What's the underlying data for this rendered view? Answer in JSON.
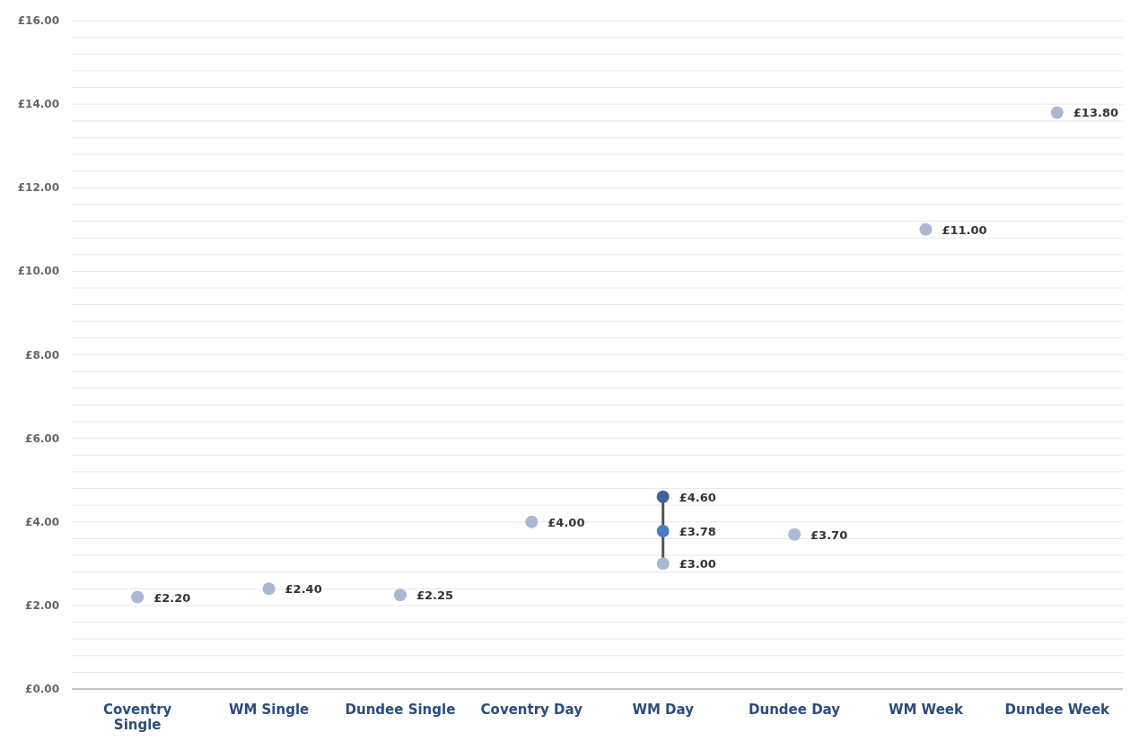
{
  "chart_data": {
    "type": "scatter",
    "categories": [
      "Coventry Single",
      "WM Single",
      "Dundee Single",
      "Coventry Day",
      "WM Day",
      "Dundee Day",
      "WM Week",
      "Dundee Week"
    ],
    "series": [
      {
        "type": "line",
        "color": "#555555",
        "x": [
          "WM Day",
          "WM Day"
        ],
        "values": [
          3.0,
          4.6
        ],
        "marker": "none"
      },
      {
        "color": "#a9b8d6",
        "values": [
          2.2,
          2.4,
          2.25,
          4.0,
          3.0,
          3.7,
          11.0,
          13.8
        ],
        "value_labels": [
          "£2.20",
          "£2.40",
          "£2.25",
          "£4.00",
          "£3.00",
          "£3.70",
          "£11.00",
          "£13.80"
        ]
      },
      {
        "color": "#4a7cc0",
        "values": [
          null,
          null,
          null,
          null,
          3.78,
          null,
          null,
          null
        ],
        "value_labels": [
          null,
          null,
          null,
          null,
          "£3.78",
          null,
          null,
          null
        ]
      },
      {
        "color": "#3a6399",
        "values": [
          null,
          null,
          null,
          null,
          4.6,
          null,
          null,
          null
        ],
        "value_labels": [
          null,
          null,
          null,
          null,
          "£4.60",
          null,
          null,
          null
        ]
      }
    ],
    "ylim": [
      0,
      16
    ],
    "yticks": [
      {
        "value": 0,
        "label": "£0.00"
      },
      {
        "value": 0.4,
        "label": null
      },
      {
        "value": 0.8,
        "label": null
      },
      {
        "value": 1.2,
        "label": null
      },
      {
        "value": 1.6,
        "label": null
      },
      {
        "value": 2,
        "label": "£2.00"
      },
      {
        "value": 2.4,
        "label": null
      },
      {
        "value": 2.8,
        "label": null
      },
      {
        "value": 3.2,
        "label": null
      },
      {
        "value": 3.6,
        "label": null
      },
      {
        "value": 4,
        "label": "£4.00"
      },
      {
        "value": 4.4,
        "label": null
      },
      {
        "value": 4.8,
        "label": null
      },
      {
        "value": 5.2,
        "label": null
      },
      {
        "value": 5.6,
        "label": null
      },
      {
        "value": 6,
        "label": "£6.00"
      },
      {
        "value": 6.4,
        "label": null
      },
      {
        "value": 6.8,
        "label": null
      },
      {
        "value": 7.2,
        "label": null
      },
      {
        "value": 7.6,
        "label": null
      },
      {
        "value": 8,
        "label": "£8.00"
      },
      {
        "value": 8.4,
        "label": null
      },
      {
        "value": 8.8,
        "label": null
      },
      {
        "value": 9.2,
        "label": null
      },
      {
        "value": 9.6,
        "label": null
      },
      {
        "value": 10,
        "label": "£10.00"
      },
      {
        "value": 10.4,
        "label": null
      },
      {
        "value": 10.8,
        "label": null
      },
      {
        "value": 11.2,
        "label": null
      },
      {
        "value": 11.6,
        "label": null
      },
      {
        "value": 12,
        "label": "£12.00"
      },
      {
        "value": 12.4,
        "label": null
      },
      {
        "value": 12.8,
        "label": null
      },
      {
        "value": 13.2,
        "label": null
      },
      {
        "value": 13.6,
        "label": null
      },
      {
        "value": 14,
        "label": "£14.00"
      },
      {
        "value": 14.4,
        "label": null
      },
      {
        "value": 14.8,
        "label": null
      },
      {
        "value": 15.2,
        "label": null
      },
      {
        "value": 15.6,
        "label": null
      },
      {
        "value": 16,
        "label": "£16.00"
      }
    ],
    "grid": "y",
    "marker": "circle"
  }
}
